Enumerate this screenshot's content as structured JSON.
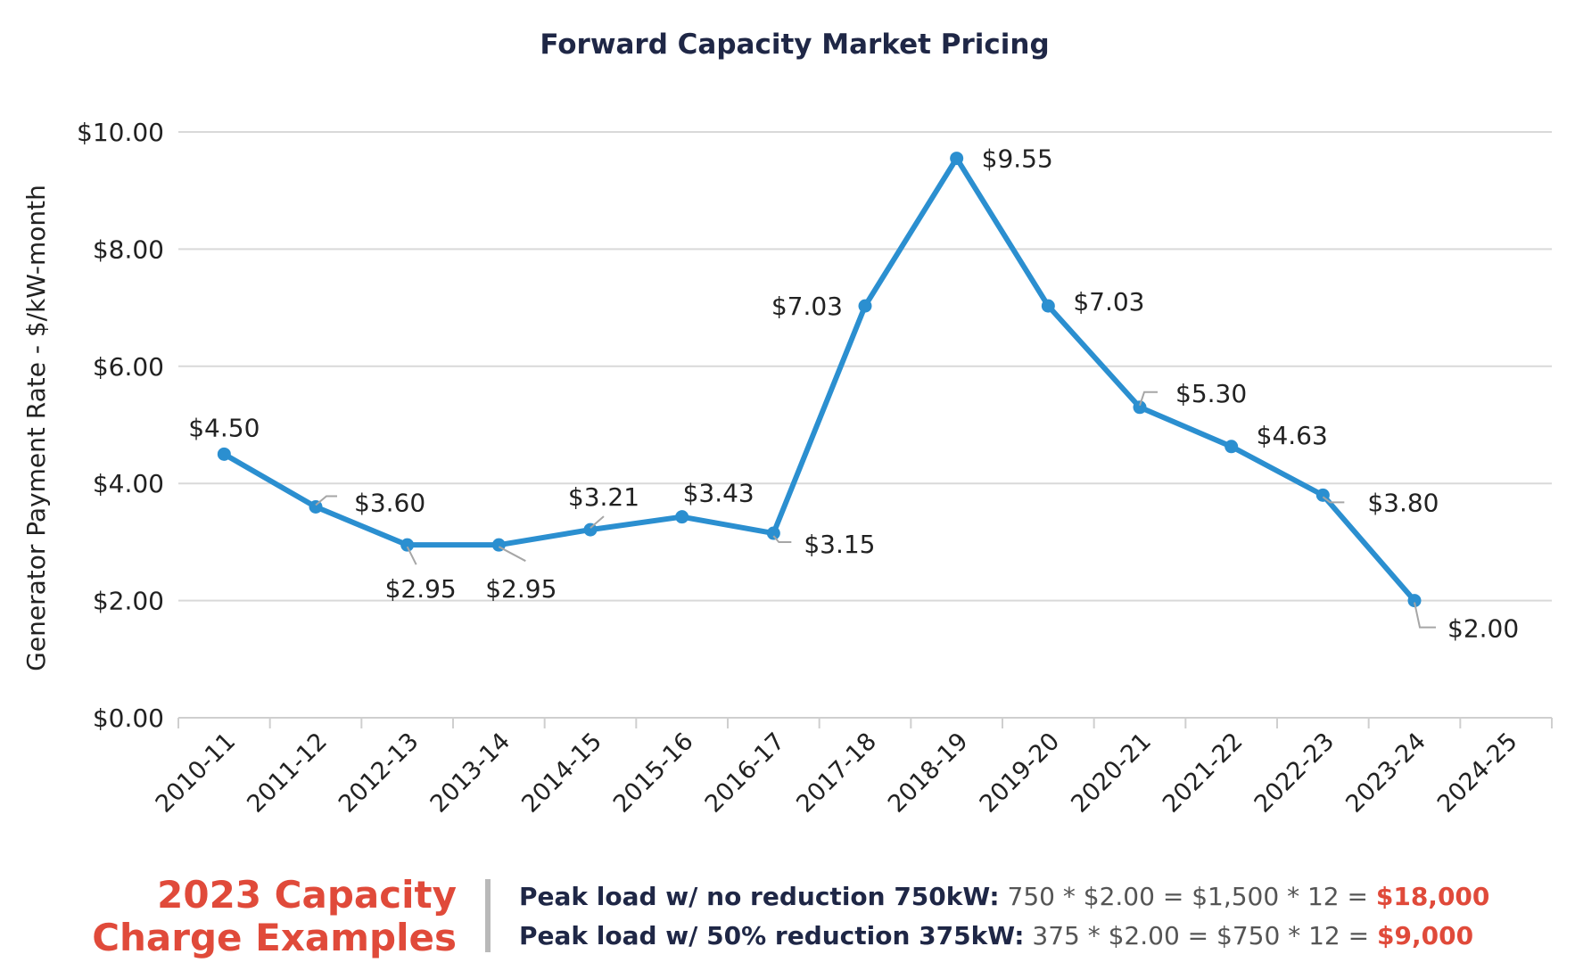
{
  "colors": {
    "line": "#2b8fd0",
    "grid": "#d9d9d9",
    "axis": "#cfcfcf",
    "title": "#1f2746",
    "text": "#222222",
    "accent": "#e04a3a"
  },
  "chart_data": {
    "type": "line",
    "title": "Forward Capacity Market Pricing",
    "ylabel": "Generator Payment Rate - $/kW-month",
    "xlabel": "",
    "ylim": [
      0,
      10
    ],
    "yticks": [
      "$0.00",
      "$2.00",
      "$4.00",
      "$6.00",
      "$8.00",
      "$10.00"
    ],
    "grid": true,
    "categories": [
      "2010-11",
      "2011-12",
      "2012-13",
      "2013-14",
      "2014-15",
      "2015-16",
      "2016-17",
      "2017-18",
      "2018-19",
      "2019-20",
      "2020-21",
      "2021-22",
      "2022-23",
      "2023-24",
      "2024-25"
    ],
    "series": [
      {
        "values": [
          4.5,
          3.6,
          2.95,
          2.95,
          3.21,
          3.43,
          3.15,
          7.03,
          9.55,
          7.03,
          5.3,
          4.63,
          3.8,
          2.0,
          null
        ],
        "labels": [
          "$4.50",
          "$3.60",
          "$2.95",
          "$2.95",
          "$3.21",
          "$3.43",
          "$3.15",
          "$7.03",
          "$9.55",
          "$7.03",
          "$5.30",
          "$4.63",
          "$3.80",
          "$2.00",
          ""
        ]
      }
    ]
  },
  "examples": {
    "title_line1": "2023 Capacity",
    "title_line2": "Charge Examples",
    "line1": {
      "label": "Peak load w/ no reduction 750kW:",
      "calc": "750 * $2.00 = $1,500 * 12 = ",
      "result": "$18,000"
    },
    "line2": {
      "label": "Peak load w/ 50% reduction 375kW:",
      "calc": "375 * $2.00 = $750 * 12 = ",
      "result": "$9,000"
    }
  }
}
